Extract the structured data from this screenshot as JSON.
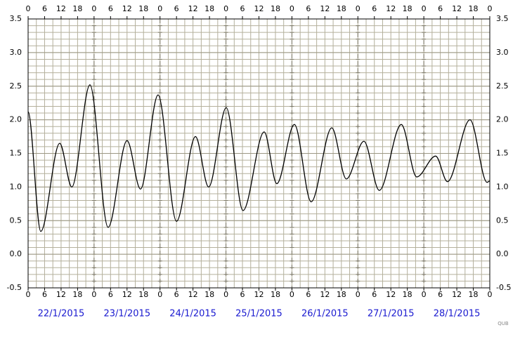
{
  "chart_data": {
    "type": "line",
    "x": [
      0,
      4.6,
      11.5,
      15.9,
      22.5,
      29.1,
      36,
      40.9,
      47.3,
      54,
      60.9,
      65.7,
      72.1,
      78.2,
      85.9,
      90.5,
      96.9,
      103,
      110.5,
      115.8,
      122.2,
      127.8,
      135.8,
      141.4,
      148.3,
      152.6,
      160.8,
      167,
      168
    ],
    "series": [
      {
        "color": "#000000",
        "values": [
          2.12,
          0.34,
          1.65,
          1.0,
          2.52,
          0.4,
          1.69,
          0.97,
          2.37,
          0.49,
          1.75,
          1.0,
          2.18,
          0.65,
          1.82,
          1.05,
          1.93,
          0.78,
          1.88,
          1.12,
          1.68,
          0.95,
          1.93,
          1.15,
          1.46,
          1.08,
          2.0,
          1.07,
          1.09
        ]
      }
    ],
    "xlim": [
      0,
      168
    ],
    "ylim": [
      -0.5,
      3.5
    ],
    "xticks": [
      0,
      {
        "value": 6,
        "label": "6"
      },
      {
        "value": 12,
        "label": "12"
      },
      {
        "value": 18,
        "label": "18"
      },
      {
        "value": 24,
        "label": "0"
      },
      {
        "value": 30,
        "label": "6"
      },
      {
        "value": 36,
        "label": "12"
      },
      {
        "value": 42,
        "label": "18"
      },
      {
        "value": 48,
        "label": "0"
      },
      {
        "value": 54,
        "label": "6"
      },
      {
        "value": 60,
        "label": "12"
      },
      {
        "value": 66,
        "label": "18"
      },
      {
        "value": 72,
        "label": "0"
      },
      {
        "value": 78,
        "label": "6"
      },
      {
        "value": 84,
        "label": "12"
      },
      {
        "value": 90,
        "label": "18"
      },
      {
        "value": 96,
        "label": "0"
      },
      {
        "value": 102,
        "label": "6"
      },
      {
        "value": 108,
        "label": "12"
      },
      {
        "value": 114,
        "label": "18"
      },
      {
        "value": 120,
        "label": "0"
      },
      {
        "value": 126,
        "label": "6"
      },
      {
        "value": 132,
        "label": "12"
      },
      {
        "value": 138,
        "label": "18"
      },
      {
        "value": 144,
        "label": "0"
      },
      {
        "value": 150,
        "label": "6"
      },
      {
        "value": 156,
        "label": "12"
      },
      {
        "value": 162,
        "label": "18"
      },
      {
        "value": 168,
        "label": "0"
      }
    ],
    "yticks": [
      -0.5,
      {
        "value": 0,
        "label": "0.0"
      },
      0.5,
      {
        "value": 1,
        "label": "1.0"
      },
      1.5,
      {
        "value": 2,
        "label": "2.0"
      },
      2.5,
      {
        "value": 3,
        "label": "3.0"
      },
      3.5
    ],
    "minor_grid": {
      "x": 3,
      "y": 0.1
    },
    "grid": true,
    "date_labels": [
      "22/1/2015",
      "23/1/2015",
      "24/1/2015",
      "25/1/2015",
      "26/1/2015",
      "27/1/2015",
      "28/1/2015"
    ],
    "credit": "QUB"
  }
}
